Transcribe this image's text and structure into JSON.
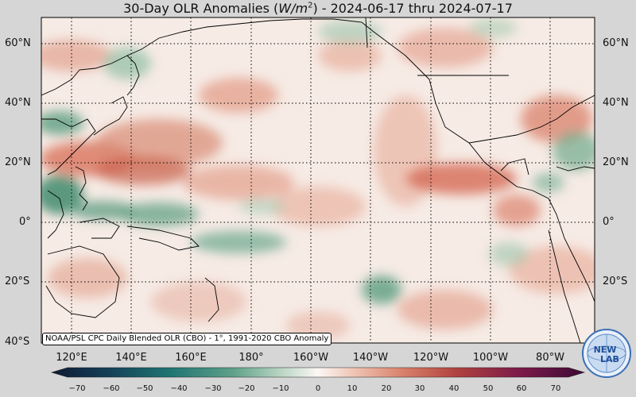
{
  "title": {
    "prefix": "30-Day OLR Anomalies (",
    "unit_base": "W/m",
    "unit_exp": "2",
    "suffix": ") - 2024-06-17 thru 2024-07-17"
  },
  "lat_labels": [
    "60°N",
    "40°N",
    "20°N",
    "0°",
    "20°S",
    "40°S"
  ],
  "lon_labels": [
    "120°E",
    "140°E",
    "160°E",
    "180°",
    "160°W",
    "140°W",
    "120°W",
    "100°W",
    "80°W"
  ],
  "credit": "NOAA/PSL CPC Daily Blended OLR (CBO) - 1°, 1991-2020 CBO Anomaly",
  "colorbar": {
    "ticks": [
      "−70",
      "−60",
      "−50",
      "−40",
      "−30",
      "−20",
      "−10",
      "0",
      "10",
      "20",
      "30",
      "40",
      "50",
      "60",
      "70"
    ],
    "negative_color": "#1b6e6b",
    "positive_color": "#c0573f"
  },
  "logo": {
    "line1": "NEW",
    "line2": "LAB"
  },
  "colors": {
    "ocean_neutral": "#f7ece6",
    "positive": "#de8a76",
    "negative": "#6fa98a"
  }
}
